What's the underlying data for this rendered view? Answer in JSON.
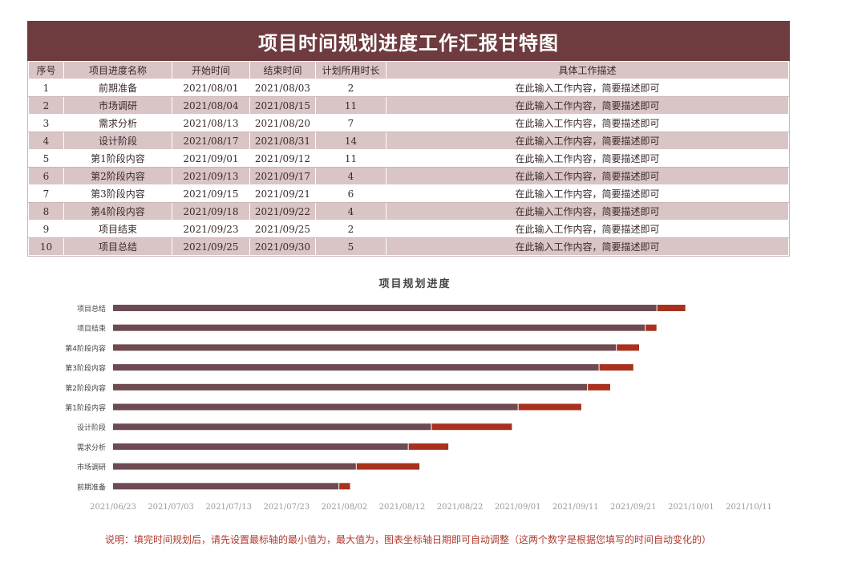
{
  "title": "项目时间规划进度工作汇报甘特图",
  "table": {
    "headers": [
      "序号",
      "项目进度名称",
      "开始时间",
      "结束时间",
      "计划所用时长",
      "具体工作描述"
    ],
    "rows": [
      [
        "1",
        "前期准备",
        "2021/08/01",
        "2021/08/03",
        "2",
        "在此输入工作内容，简要描述即可"
      ],
      [
        "2",
        "市场调研",
        "2021/08/04",
        "2021/08/15",
        "11",
        "在此输入工作内容，简要描述即可"
      ],
      [
        "3",
        "需求分析",
        "2021/08/13",
        "2021/08/20",
        "7",
        "在此输入工作内容，简要描述即可"
      ],
      [
        "4",
        "设计阶段",
        "2021/08/17",
        "2021/08/31",
        "14",
        "在此输入工作内容，简要描述即可"
      ],
      [
        "5",
        "第1阶段内容",
        "2021/09/01",
        "2021/09/12",
        "11",
        "在此输入工作内容，简要描述即可"
      ],
      [
        "6",
        "第2阶段内容",
        "2021/09/13",
        "2021/09/17",
        "4",
        "在此输入工作内容，简要描述即可"
      ],
      [
        "7",
        "第3阶段内容",
        "2021/09/15",
        "2021/09/21",
        "6",
        "在此输入工作内容，简要描述即可"
      ],
      [
        "8",
        "第4阶段内容",
        "2021/09/18",
        "2021/09/22",
        "4",
        "在此输入工作内容，简要描述即可"
      ],
      [
        "9",
        "项目结束",
        "2021/09/23",
        "2021/09/25",
        "2",
        "在此输入工作内容，简要描述即可"
      ],
      [
        "10",
        "项目总结",
        "2021/09/25",
        "2021/09/30",
        "5",
        "在此输入工作内容，简要描述即可"
      ]
    ]
  },
  "chart_data": {
    "type": "bar",
    "subtype": "stacked-horizontal-gantt",
    "title": "项目规划进度",
    "categories": [
      "项目总结",
      "项目结束",
      "第4阶段内容",
      "第3阶段内容",
      "第2阶段内容",
      "第1阶段内容",
      "设计阶段",
      "需求分析",
      "市场调研",
      "前期准备"
    ],
    "series": [
      {
        "name": "开始时间",
        "values": [
          "2021/09/25",
          "2021/09/23",
          "2021/09/18",
          "2021/09/15",
          "2021/09/13",
          "2021/09/01",
          "2021/08/17",
          "2021/08/13",
          "2021/08/04",
          "2021/08/01"
        ],
        "color": "#6e4a52"
      },
      {
        "name": "计划所用时长",
        "values": [
          5,
          2,
          4,
          6,
          4,
          11,
          14,
          7,
          11,
          2
        ],
        "color": "#a8321e"
      }
    ],
    "xaxis_ticks": [
      "2021/06/23",
      "2021/07/03",
      "2021/07/13",
      "2021/07/23",
      "2021/08/02",
      "2021/08/12",
      "2021/08/22",
      "2021/09/01",
      "2021/09/11",
      "2021/09/21",
      "2021/10/01",
      "2021/10/11"
    ],
    "xlim": [
      "2021/06/23",
      "2021/10/11"
    ],
    "xlabel": "",
    "ylabel": "",
    "grid": false,
    "legend": "none"
  },
  "note": "说明：填完时间规划后，请先设置最标轴的最小值为，最大值为，图表坐标轴日期即可自动调整（这两个数字是根据您填写的时间自动变化的）",
  "colors": {
    "title_bg": "#6e3b3f",
    "row_alt": "#d9c4c6",
    "bar_start": "#6e4a52",
    "bar_duration": "#a8321e",
    "note_text": "#b03a2e"
  }
}
